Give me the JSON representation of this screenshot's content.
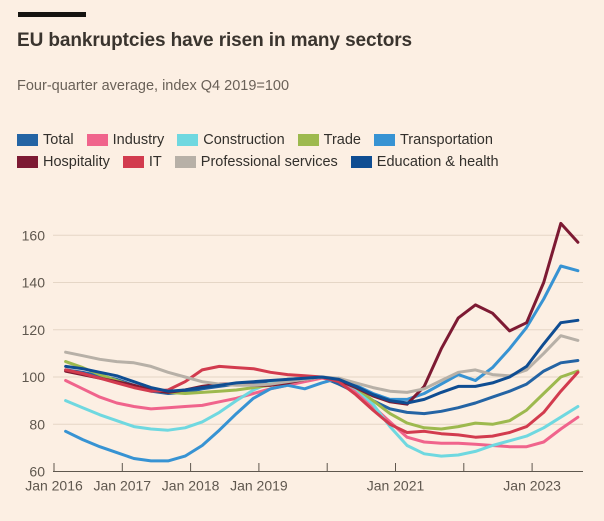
{
  "header": {
    "title": "EU bankruptcies have risen in many sectors",
    "subtitle": "Four-quarter average, index Q4 2019=100"
  },
  "colors": {
    "background": "#fcefe3",
    "grid": "#e5d6c6",
    "axis": "#5f574e",
    "label_text": "#5f574e",
    "legend_text": "#33302c",
    "top_bar": "#161411"
  },
  "chart_data": {
    "type": "line",
    "title": "EU bankruptcies have risen in many sectors",
    "subtitle": "Four-quarter average, index Q4 2019=100",
    "grid": "horizontal",
    "legend_position": "top",
    "x_label_prefix": "Jan",
    "x_tick_years": [
      2016,
      2017,
      2018,
      2019,
      2020,
      2021,
      2022,
      2023
    ],
    "x_labeled_years": [
      2016,
      2017,
      2018,
      2019,
      2021,
      2023
    ],
    "x_range": [
      2016.0,
      2023.9
    ],
    "y_ticks": [
      60,
      80,
      100,
      120,
      140,
      160
    ],
    "y_range": [
      60,
      170
    ],
    "x_start": 2016.17,
    "x_step": 0.25,
    "series": [
      {
        "name": "Total",
        "color": "#2464a4",
        "values": [
          103,
          102,
          100.5,
          99,
          96.5,
          94,
          93,
          93.5,
          95,
          96,
          97,
          97.5,
          98,
          99,
          99.5,
          100,
          97,
          93.5,
          90,
          86.5,
          85,
          84.5,
          85.5,
          87,
          89,
          91.5,
          94,
          97,
          102.5,
          106,
          107
        ]
      },
      {
        "name": "Industry",
        "color": "#f0648c",
        "values": [
          98.5,
          95,
          91.5,
          89,
          87.5,
          86.5,
          87,
          87.5,
          88,
          89.5,
          91,
          93,
          95,
          96.5,
          98,
          99.5,
          98.5,
          94,
          87.5,
          81,
          74.5,
          72.5,
          72,
          72,
          71.5,
          71,
          70.5,
          70.5,
          72.5,
          78,
          83
        ]
      },
      {
        "name": "Construction",
        "color": "#6fd8e0",
        "values": [
          90,
          87,
          84,
          81.5,
          79,
          78,
          77.5,
          78.5,
          81,
          85,
          90,
          94.5,
          97.5,
          99,
          99.5,
          100,
          99,
          95,
          88.5,
          79,
          71,
          67.5,
          66.5,
          67,
          68.5,
          71,
          73,
          75,
          78.5,
          83,
          87.5
        ]
      },
      {
        "name": "Trade",
        "color": "#9db94e",
        "values": [
          106.5,
          104,
          101,
          98.5,
          96,
          94.5,
          93.5,
          93,
          93.5,
          94,
          94.5,
          95.5,
          96.5,
          97.5,
          99,
          100,
          99,
          95.5,
          90,
          84.5,
          80.5,
          78.5,
          78,
          79,
          80.5,
          80,
          81.5,
          86,
          93,
          100,
          102.5
        ]
      },
      {
        "name": "Transportation",
        "color": "#3793d3",
        "values": [
          77,
          73.5,
          70.5,
          68,
          65.5,
          64.5,
          64.5,
          66.5,
          71,
          77.5,
          84.5,
          91,
          95,
          96.5,
          95,
          97.5,
          99.5,
          96.5,
          93,
          90.5,
          90.5,
          93,
          97,
          101,
          98.5,
          104,
          112,
          121,
          133,
          147,
          145
        ]
      },
      {
        "name": "Hospitality",
        "color": "#7d1a33",
        "values": [
          102.5,
          101,
          99.5,
          98,
          96.5,
          94.5,
          93.5,
          94.5,
          96,
          97,
          97,
          96.5,
          96.5,
          97.5,
          99,
          100,
          98.5,
          95.5,
          92,
          89.5,
          88.5,
          96,
          112,
          125,
          130.5,
          127,
          119.5,
          123,
          140,
          165,
          157
        ]
      },
      {
        "name": "IT",
        "color": "#d23b4e",
        "values": [
          103,
          101.5,
          99.5,
          97.5,
          95.5,
          94,
          94.5,
          98,
          103,
          104.5,
          104,
          103.5,
          102,
          101,
          100.5,
          100,
          98,
          92.5,
          86,
          80,
          76.5,
          77,
          76,
          75.5,
          74.5,
          75,
          76.5,
          79,
          85,
          94,
          102
        ]
      },
      {
        "name": "Professional services",
        "color": "#b7b0a7",
        "values": [
          110.5,
          109,
          107.5,
          106.5,
          106,
          104.5,
          102,
          100,
          98,
          97,
          96.5,
          96.5,
          97,
          98,
          99,
          100,
          99.5,
          97.5,
          95.5,
          94,
          93.5,
          95,
          98.5,
          102,
          103,
          101,
          100.5,
          103,
          110,
          117.5,
          115.5
        ]
      },
      {
        "name": "Education & health",
        "color": "#0f4d92",
        "values": [
          104.5,
          103.5,
          102,
          100.5,
          98,
          95.5,
          94,
          94.5,
          95.5,
          96.5,
          97.5,
          98,
          98.5,
          99,
          99.5,
          100,
          99,
          96,
          92.5,
          90,
          89,
          90.5,
          93.5,
          96,
          96,
          97.5,
          100,
          104.5,
          114,
          123,
          124
        ]
      }
    ]
  }
}
